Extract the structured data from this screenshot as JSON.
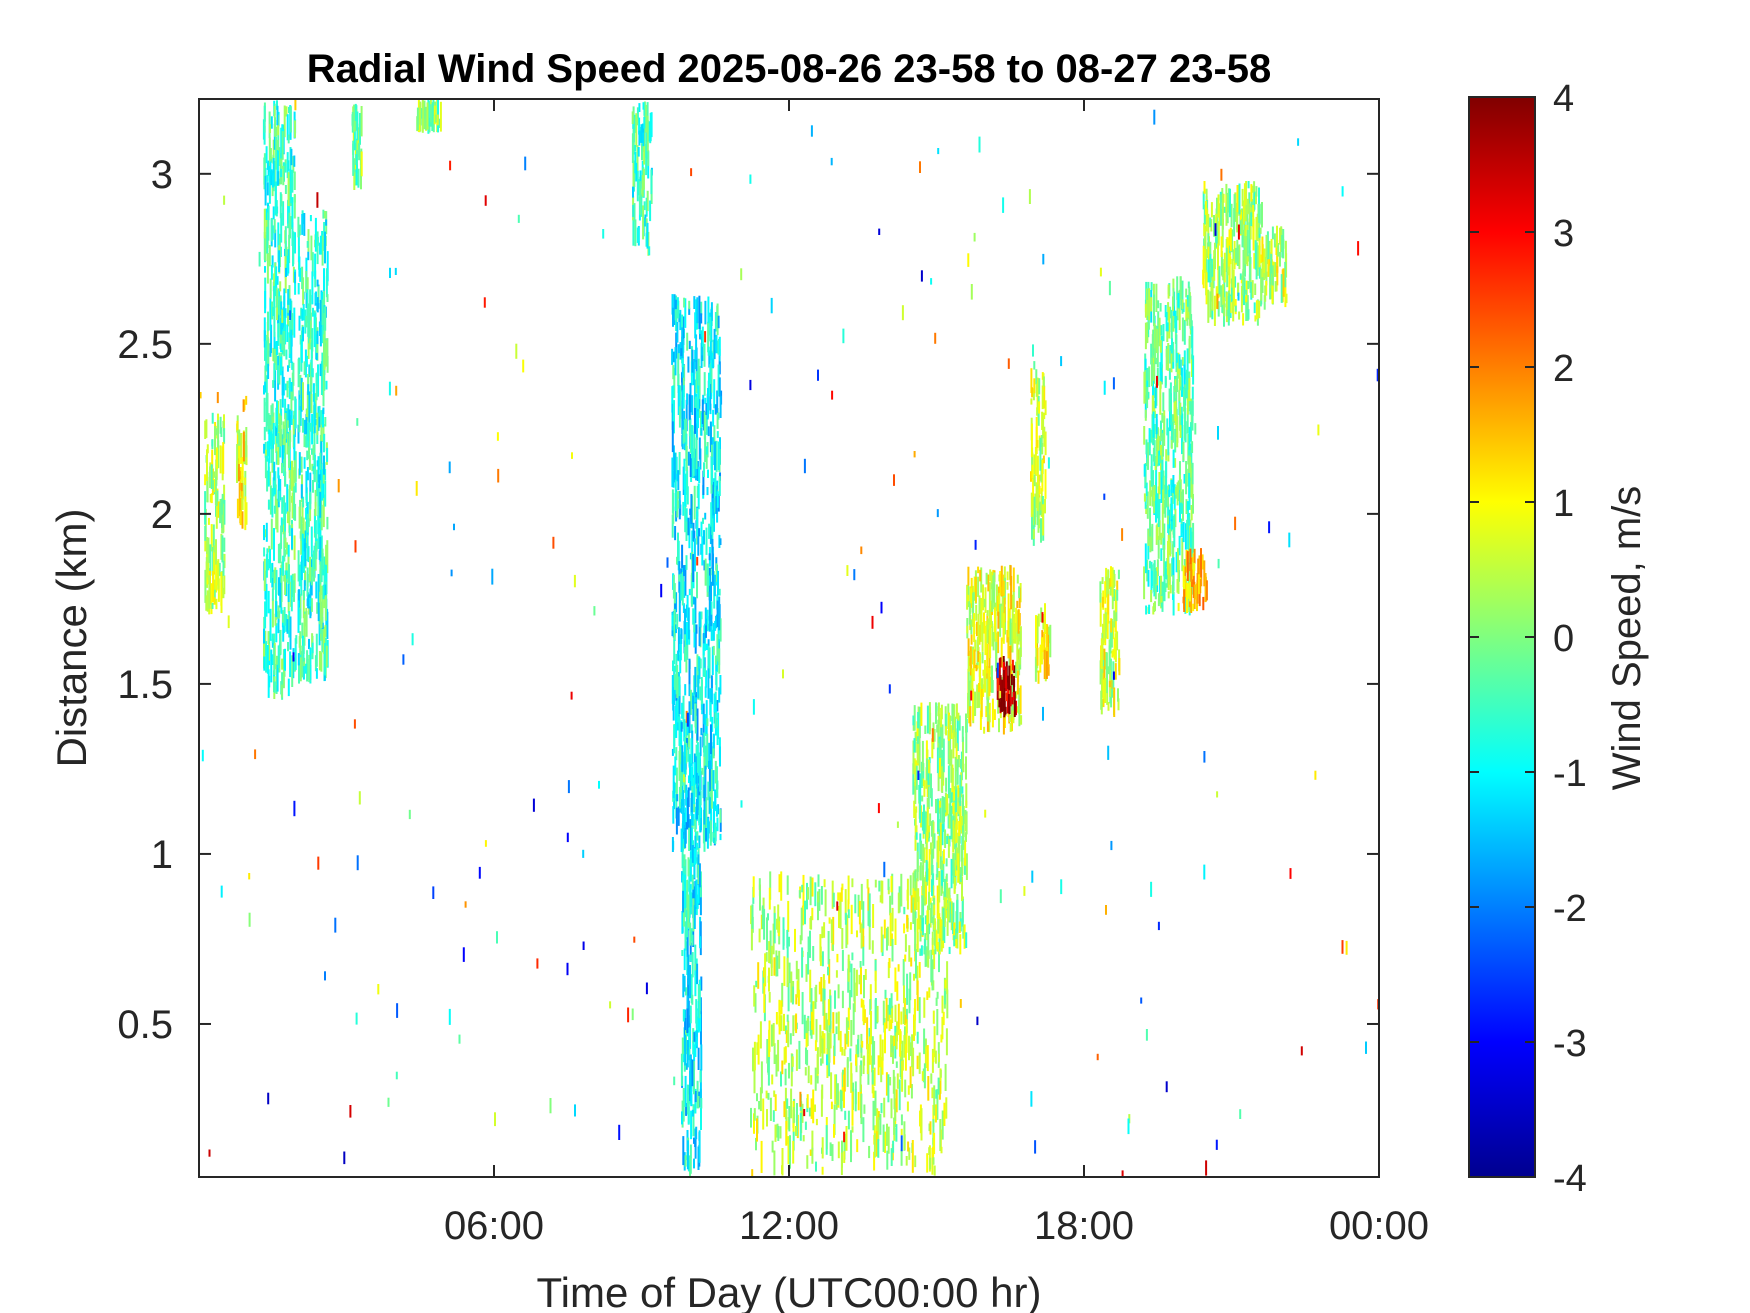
{
  "chart_data": {
    "type": "heatmap",
    "title": "Radial Wind Speed 2025-08-26 23-58 to 08-27 23-58",
    "xlabel": "Time of Day (UTC00:00 hr)",
    "ylabel": "Distance (km)",
    "colorbar_label": "Wind Speed, m/s",
    "xlim": [
      0,
      24
    ],
    "ylim": [
      0.05,
      3.22
    ],
    "clim": [
      -4,
      4
    ],
    "x_ticks": [
      {
        "value": 6,
        "label": "06:00"
      },
      {
        "value": 12,
        "label": "12:00"
      },
      {
        "value": 18,
        "label": "18:00"
      },
      {
        "value": 24,
        "label": "00:00"
      }
    ],
    "y_ticks": [
      {
        "value": 0.5,
        "label": "0.5"
      },
      {
        "value": 1,
        "label": "1"
      },
      {
        "value": 1.5,
        "label": "1.5"
      },
      {
        "value": 2,
        "label": "2"
      },
      {
        "value": 2.5,
        "label": "2.5"
      },
      {
        "value": 3,
        "label": "3"
      }
    ],
    "colorbar_ticks": [
      {
        "value": 4,
        "label": "4"
      },
      {
        "value": 3,
        "label": "3"
      },
      {
        "value": 2,
        "label": "2"
      },
      {
        "value": 1,
        "label": "1"
      },
      {
        "value": 0,
        "label": "0"
      },
      {
        "value": -1,
        "label": "-1"
      },
      {
        "value": -2,
        "label": "-2"
      },
      {
        "value": -3,
        "label": "-3"
      },
      {
        "value": -4,
        "label": "-4"
      }
    ],
    "colormap": "jet",
    "regions": [
      {
        "name": "early-column-a",
        "t": [
          0.1,
          0.5
        ],
        "d": [
          1.7,
          2.3
        ],
        "speed": 0.3
      },
      {
        "name": "early-column-b",
        "t": [
          0.75,
          0.95
        ],
        "d": [
          1.95,
          2.35
        ],
        "speed": 1.0
      },
      {
        "name": "early-column-c",
        "t": [
          1.3,
          1.95
        ],
        "d": [
          1.45,
          3.22
        ],
        "speed": -0.5
      },
      {
        "name": "early-column-d",
        "t": [
          2.0,
          2.6
        ],
        "d": [
          1.5,
          2.9
        ],
        "speed": -0.6
      },
      {
        "name": "early-top-a",
        "t": [
          3.1,
          3.3
        ],
        "d": [
          2.95,
          3.22
        ],
        "speed": 0.0
      },
      {
        "name": "early-top-b",
        "t": [
          4.4,
          4.9
        ],
        "d": [
          3.12,
          3.22
        ],
        "speed": 0.0
      },
      {
        "name": "pre-dawn-top",
        "t": [
          8.8,
          9.2
        ],
        "d": [
          2.75,
          3.22
        ],
        "speed": -0.5
      },
      {
        "name": "vertical-plume-low",
        "t": [
          9.8,
          10.2
        ],
        "d": [
          0.05,
          1.3
        ],
        "speed": -1.0
      },
      {
        "name": "vertical-plume-mid",
        "t": [
          9.6,
          10.6
        ],
        "d": [
          1.0,
          2.65
        ],
        "speed": -1.0
      },
      {
        "name": "midday-surface",
        "t": [
          11.2,
          15.2
        ],
        "d": [
          0.05,
          0.95
        ],
        "speed": 0.4
      },
      {
        "name": "boundary-layer-rise-a",
        "t": [
          14.5,
          15.6
        ],
        "d": [
          0.7,
          1.45
        ],
        "speed": 0.2
      },
      {
        "name": "boundary-layer-rise-b",
        "t": [
          15.6,
          16.7
        ],
        "d": [
          1.35,
          1.85
        ],
        "speed": 0.8
      },
      {
        "name": "updraft-core",
        "t": [
          16.2,
          16.6
        ],
        "d": [
          1.4,
          1.6
        ],
        "speed": 3.5
      },
      {
        "name": "afternoon-streak-a",
        "t": [
          16.9,
          17.2
        ],
        "d": [
          1.9,
          2.45
        ],
        "speed": 0.5
      },
      {
        "name": "afternoon-streak-b",
        "t": [
          17.0,
          17.3
        ],
        "d": [
          1.5,
          1.75
        ],
        "speed": 0.9
      },
      {
        "name": "evening-streak",
        "t": [
          18.3,
          18.7
        ],
        "d": [
          1.4,
          1.85
        ],
        "speed": 0.6
      },
      {
        "name": "evening-band-a",
        "t": [
          19.2,
          20.2
        ],
        "d": [
          1.7,
          2.7
        ],
        "speed": -0.3
      },
      {
        "name": "evening-band-b",
        "t": [
          20.0,
          20.5
        ],
        "d": [
          1.7,
          1.9
        ],
        "speed": 1.5
      },
      {
        "name": "night-layer",
        "t": [
          20.4,
          21.6
        ],
        "d": [
          2.55,
          2.98
        ],
        "speed": 0.2
      },
      {
        "name": "night-layer-edge",
        "t": [
          21.6,
          22.1
        ],
        "d": [
          2.6,
          2.85
        ],
        "speed": 0.5
      }
    ]
  }
}
